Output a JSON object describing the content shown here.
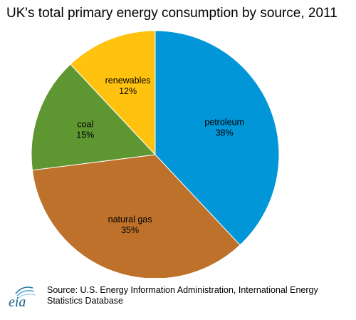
{
  "chart_data": {
    "type": "pie",
    "title": "UK's total primary energy consumption by source, 2011",
    "slices": [
      {
        "label": "petroleum",
        "value": 38,
        "value_label": "38%",
        "color": "#0096d7"
      },
      {
        "label": "natural gas",
        "value": 35,
        "value_label": "35%",
        "color": "#bd712b"
      },
      {
        "label": "coal",
        "value": 15,
        "value_label": "15%",
        "color": "#5e9732"
      },
      {
        "label": "renewables",
        "value": 12,
        "value_label": "12%",
        "color": "#ffc20e"
      }
    ],
    "start": "12 o'clock",
    "direction": "clockwise"
  },
  "footer": {
    "logo_text": "eia",
    "source": "Source: U.S. Energy Information Administration, International Energy Statistics Database"
  }
}
